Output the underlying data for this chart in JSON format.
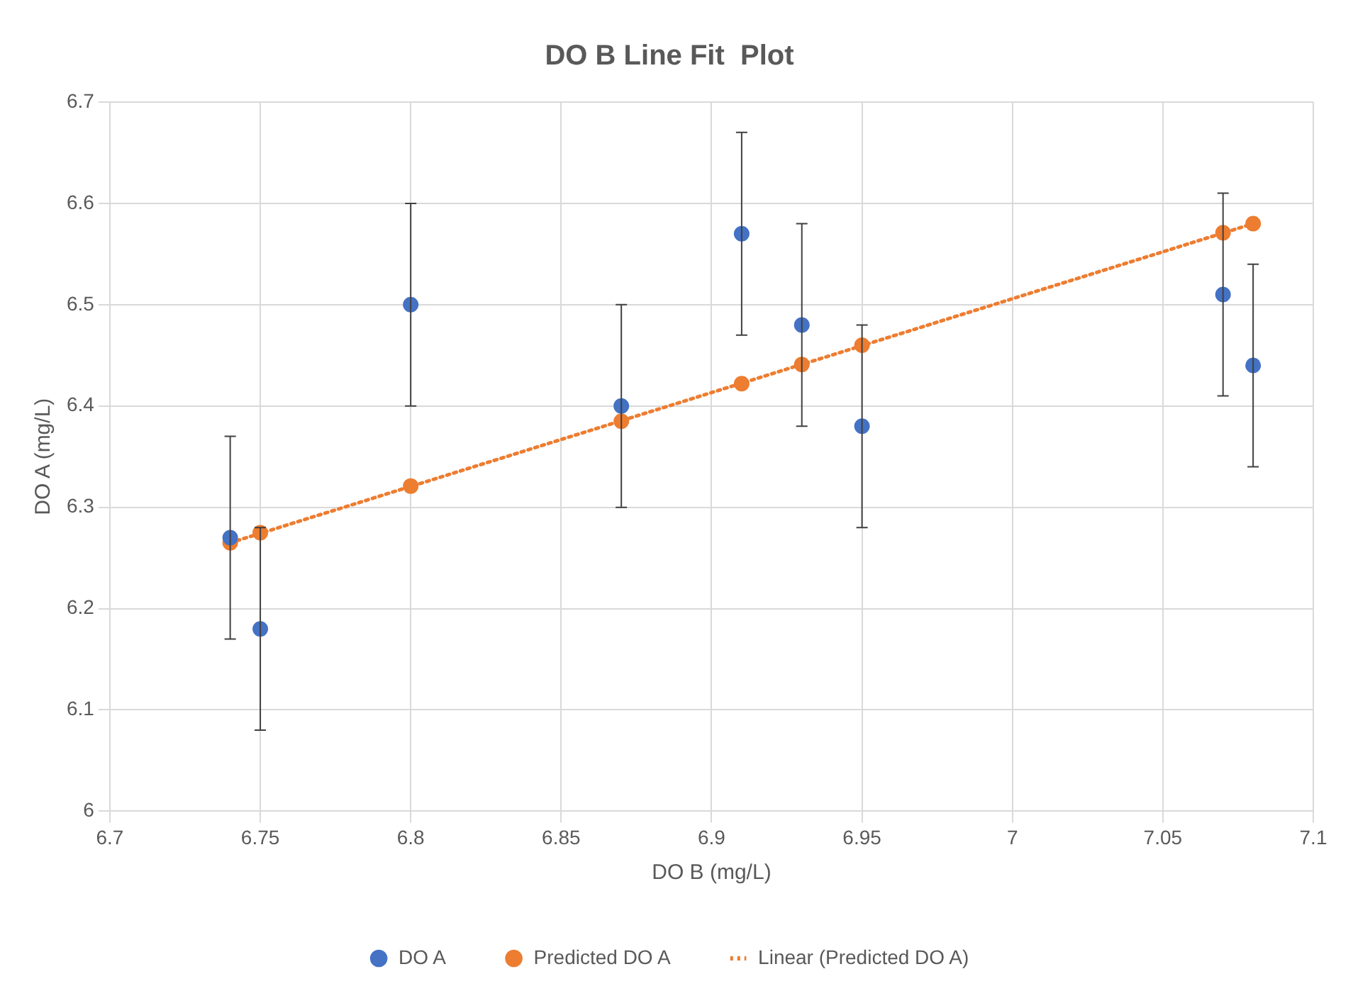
{
  "chart_data": {
    "type": "scatter",
    "title": "DO B Line Fit  Plot",
    "xlabel": "DO B (mg/L)",
    "ylabel": "DO A (mg/L)",
    "series": [
      {
        "name": "DO A",
        "color": "#4472c4",
        "x": [
          6.74,
          6.75,
          6.8,
          6.87,
          6.91,
          6.93,
          6.95,
          7.07,
          7.08
        ],
        "values": [
          6.27,
          6.18,
          6.5,
          6.4,
          6.57,
          6.48,
          6.38,
          6.51,
          6.44
        ],
        "errors": [
          0.1,
          0.1,
          0.1,
          0.1,
          0.1,
          0.1,
          0.1,
          0.1,
          0.1
        ]
      },
      {
        "name": "Predicted DO A",
        "color": "#ed7d31",
        "x": [
          6.74,
          6.75,
          6.8,
          6.87,
          6.91,
          6.93,
          6.95,
          7.07,
          7.08
        ],
        "values": [
          6.265,
          6.275,
          6.321,
          6.385,
          6.422,
          6.441,
          6.46,
          6.571,
          6.58
        ]
      },
      {
        "name": "Linear (Predicted DO A)",
        "type": "line",
        "color": "#ed7d31",
        "x": [
          6.74,
          7.08
        ],
        "values": [
          6.265,
          6.58
        ],
        "line_style": "dotted",
        "marker": "none"
      }
    ],
    "xlim": [
      6.7,
      7.1
    ],
    "xticks": [
      6.7,
      6.75,
      6.8,
      6.85,
      6.9,
      6.95,
      7,
      7.05,
      7.1
    ],
    "ylim": [
      6,
      6.7
    ],
    "yticks": [
      6,
      6.1,
      6.2,
      6.3,
      6.4,
      6.5,
      6.6,
      6.7
    ],
    "grid": true,
    "legend": "bottom",
    "marker": "circle"
  }
}
